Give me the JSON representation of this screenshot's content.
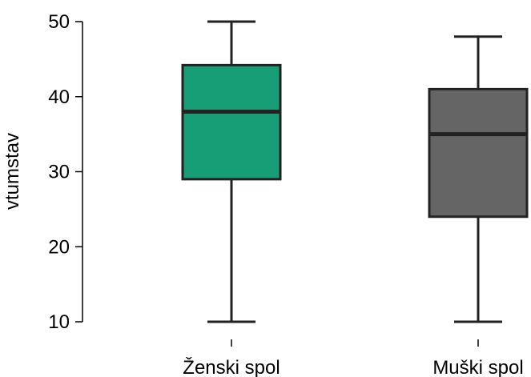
{
  "chart_data": {
    "type": "box",
    "ylabel": "vtumstav",
    "xlabel": "",
    "ylim": [
      10,
      50
    ],
    "yticks": [
      10,
      20,
      30,
      40,
      50
    ],
    "categories": [
      "Ženski spol",
      "Muški spol"
    ],
    "boxes": [
      {
        "category": "Ženski spol",
        "min": 10,
        "q1": 29,
        "median": 38,
        "q3": 44.2,
        "max": 50,
        "color": "#179e77"
      },
      {
        "category": "Muški spol",
        "min": 10,
        "q1": 24,
        "median": 35,
        "q3": 41,
        "max": 48,
        "color": "#656565"
      }
    ],
    "grid": false,
    "legend": "none"
  }
}
